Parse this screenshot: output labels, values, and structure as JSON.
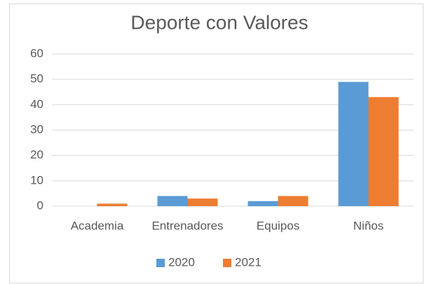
{
  "chart_data": {
    "type": "bar",
    "title": "Deporte con Valores",
    "categories": [
      "Academia",
      "Entrenadores",
      "Equipos",
      "Niños"
    ],
    "series": [
      {
        "name": "2020",
        "color": "#5b9bd5",
        "values": [
          0,
          4,
          2,
          49
        ]
      },
      {
        "name": "2021",
        "color": "#ed7d31",
        "values": [
          1,
          3,
          4,
          43
        ]
      }
    ],
    "ylim": [
      0,
      60
    ],
    "yticks": [
      0,
      10,
      20,
      30,
      40,
      50,
      60
    ],
    "grid": true,
    "legend": "bottom"
  }
}
